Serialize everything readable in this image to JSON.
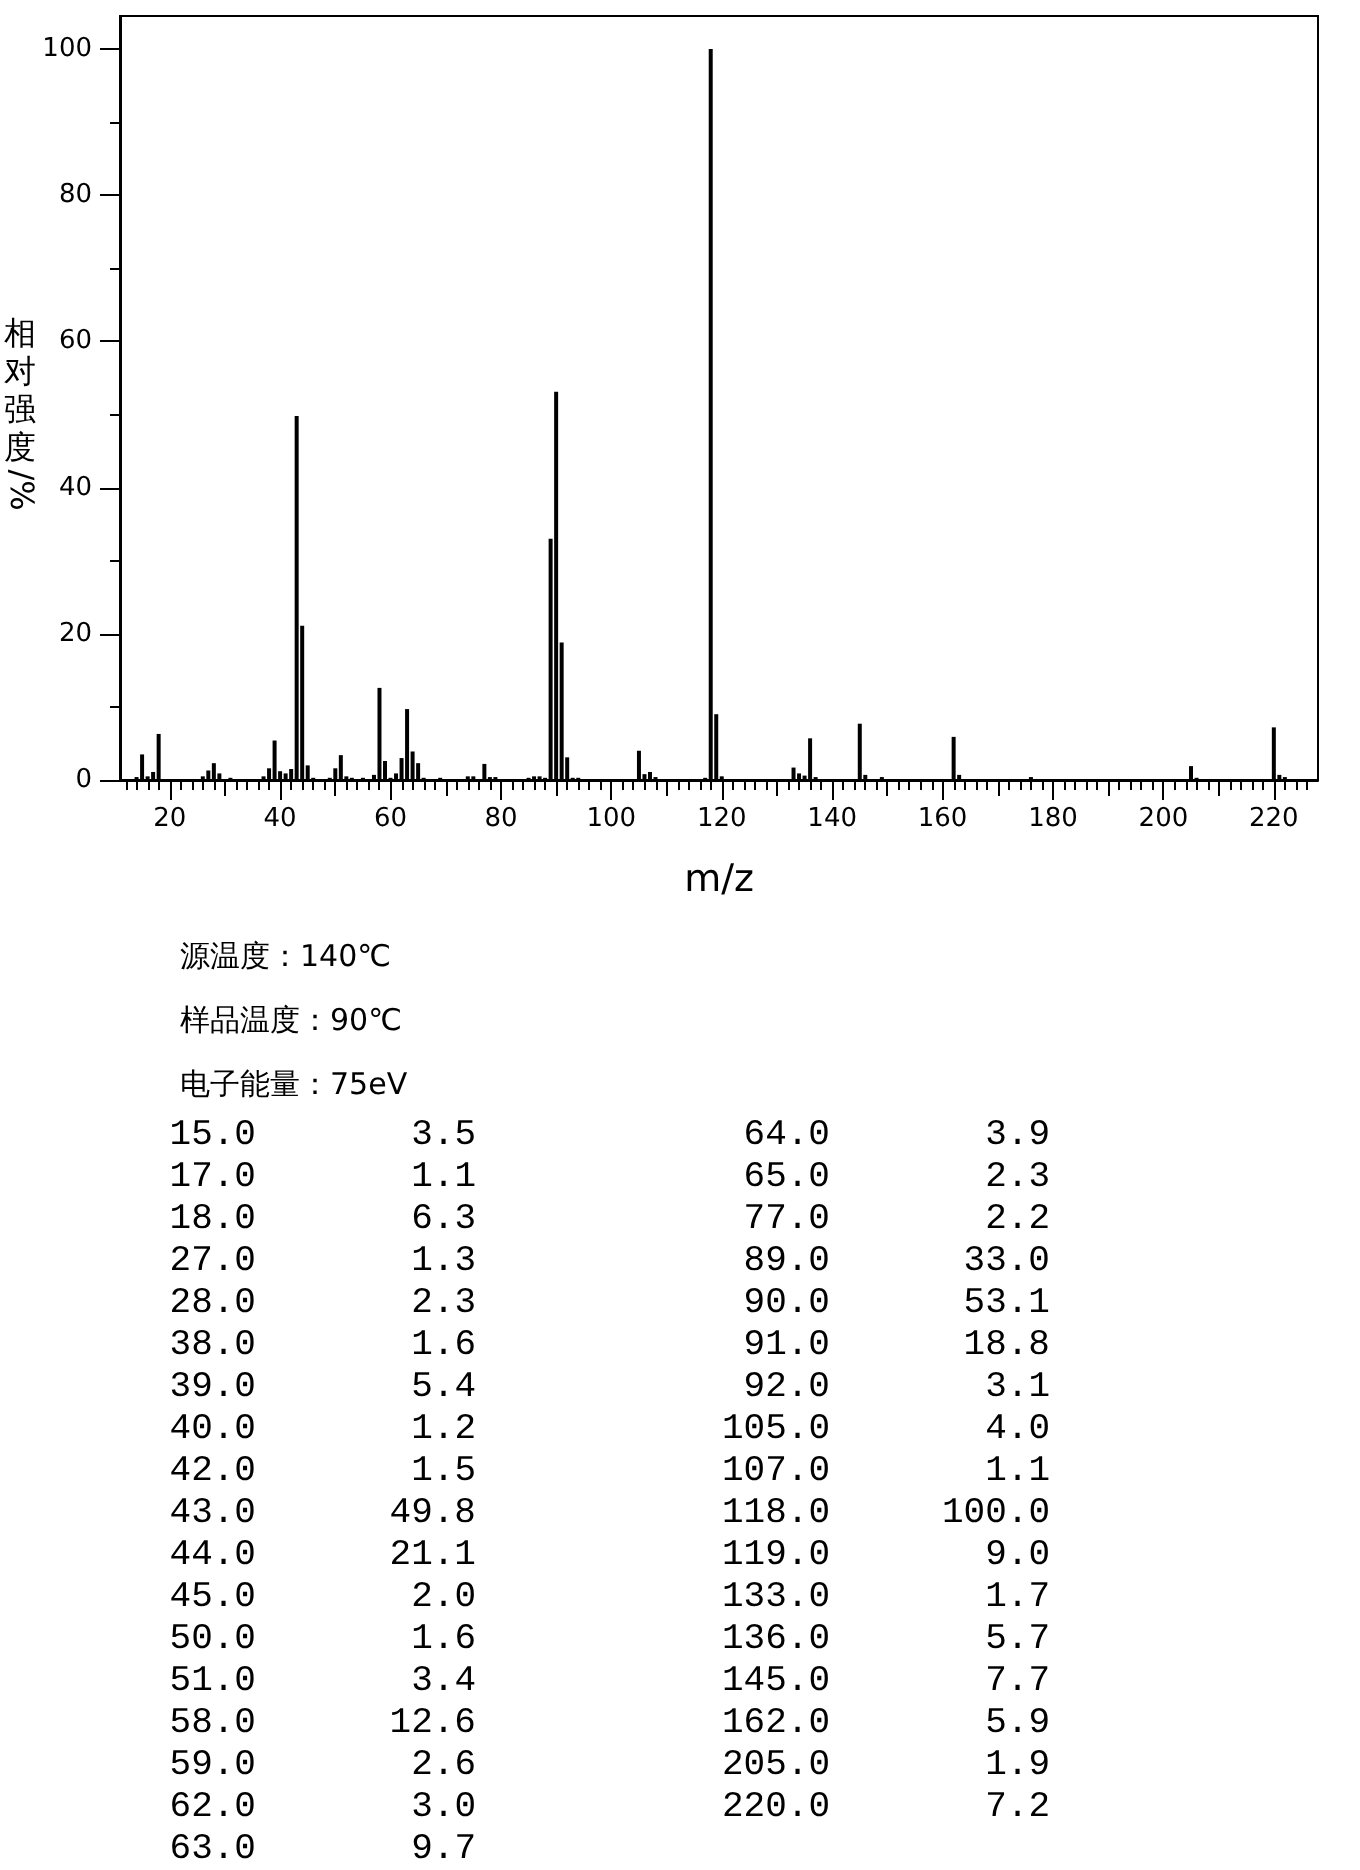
{
  "chart_data": [
    {
      "type": "bar",
      "xlabel": "m/z",
      "ylabel": "相对强度/%",
      "color": "#000000",
      "annotations": [
        "源温度：140℃",
        "样品温度：90℃",
        "电子能量：75eV"
      ],
      "x": [
        14,
        15,
        16,
        17,
        18,
        26,
        27,
        28,
        29,
        31,
        37,
        38,
        39,
        40,
        41,
        42,
        43,
        44,
        45,
        46,
        49,
        50,
        51,
        52,
        53,
        55,
        57,
        58,
        59,
        60,
        61,
        62,
        63,
        64,
        65,
        66,
        69,
        74,
        75,
        77,
        78,
        79,
        85,
        86,
        87,
        88,
        89,
        90,
        91,
        92,
        93,
        94,
        105,
        106,
        107,
        108,
        117,
        118,
        119,
        120,
        133,
        134,
        135,
        136,
        137,
        145,
        146,
        149,
        162,
        163,
        176,
        205,
        206,
        220,
        221,
        222
      ],
      "values": [
        0.4,
        3.5,
        0.5,
        1.1,
        6.3,
        0.5,
        1.3,
        2.3,
        0.9,
        0.3,
        0.5,
        1.6,
        5.4,
        1.2,
        0.9,
        1.5,
        49.8,
        21.1,
        2.0,
        0.3,
        0.3,
        1.6,
        3.4,
        0.5,
        0.3,
        0.3,
        0.7,
        12.6,
        2.6,
        0.3,
        0.9,
        3.0,
        9.7,
        3.9,
        2.3,
        0.3,
        0.3,
        0.5,
        0.5,
        2.2,
        0.4,
        0.4,
        0.3,
        0.5,
        0.5,
        0.3,
        33.0,
        53.1,
        18.8,
        3.1,
        0.3,
        0.3,
        4.0,
        0.8,
        1.1,
        0.4,
        0.3,
        100.0,
        9.0,
        0.5,
        1.7,
        0.9,
        0.6,
        5.7,
        0.4,
        7.7,
        0.7,
        0.4,
        5.9,
        0.7,
        0.4,
        1.9,
        0.3,
        7.2,
        0.7,
        0.4
      ],
      "xlim": [
        11,
        228
      ],
      "xticks": [
        {
          "value": 12,
          "label": null
        },
        {
          "value": 14,
          "label": null
        },
        {
          "value": 16,
          "label": null
        },
        {
          "value": 18,
          "label": null
        },
        20,
        {
          "value": 22,
          "label": null
        },
        {
          "value": 24,
          "label": null
        },
        {
          "value": 26,
          "label": null
        },
        {
          "value": 28,
          "label": null
        },
        {
          "value": 30,
          "label": null
        },
        {
          "value": 32,
          "label": null
        },
        {
          "value": 34,
          "label": null
        },
        {
          "value": 36,
          "label": null
        },
        {
          "value": 38,
          "label": null
        },
        40,
        {
          "value": 42,
          "label": null
        },
        {
          "value": 44,
          "label": null
        },
        {
          "value": 46,
          "label": null
        },
        {
          "value": 48,
          "label": null
        },
        {
          "value": 50,
          "label": null
        },
        {
          "value": 52,
          "label": null
        },
        {
          "value": 54,
          "label": null
        },
        {
          "value": 56,
          "label": null
        },
        {
          "value": 58,
          "label": null
        },
        60,
        {
          "value": 62,
          "label": null
        },
        {
          "value": 64,
          "label": null
        },
        {
          "value": 66,
          "label": null
        },
        {
          "value": 68,
          "label": null
        },
        {
          "value": 70,
          "label": null
        },
        {
          "value": 72,
          "label": null
        },
        {
          "value": 74,
          "label": null
        },
        {
          "value": 76,
          "label": null
        },
        {
          "value": 78,
          "label": null
        },
        80,
        {
          "value": 82,
          "label": null
        },
        {
          "value": 84,
          "label": null
        },
        {
          "value": 86,
          "label": null
        },
        {
          "value": 88,
          "label": null
        },
        {
          "value": 90,
          "label": null
        },
        {
          "value": 92,
          "label": null
        },
        {
          "value": 94,
          "label": null
        },
        {
          "value": 96,
          "label": null
        },
        {
          "value": 98,
          "label": null
        },
        100,
        {
          "value": 102,
          "label": null
        },
        {
          "value": 104,
          "label": null
        },
        {
          "value": 106,
          "label": null
        },
        {
          "value": 108,
          "label": null
        },
        {
          "value": 110,
          "label": null
        },
        {
          "value": 112,
          "label": null
        },
        {
          "value": 114,
          "label": null
        },
        {
          "value": 116,
          "label": null
        },
        {
          "value": 118,
          "label": null
        },
        120,
        {
          "value": 122,
          "label": null
        },
        {
          "value": 124,
          "label": null
        },
        {
          "value": 126,
          "label": null
        },
        {
          "value": 128,
          "label": null
        },
        {
          "value": 130,
          "label": null
        },
        {
          "value": 132,
          "label": null
        },
        {
          "value": 134,
          "label": null
        },
        {
          "value": 136,
          "label": null
        },
        {
          "value": 138,
          "label": null
        },
        140,
        {
          "value": 142,
          "label": null
        },
        {
          "value": 144,
          "label": null
        },
        {
          "value": 146,
          "label": null
        },
        {
          "value": 148,
          "label": null
        },
        {
          "value": 150,
          "label": null
        },
        {
          "value": 152,
          "label": null
        },
        {
          "value": 154,
          "label": null
        },
        {
          "value": 156,
          "label": null
        },
        {
          "value": 158,
          "label": null
        },
        160,
        {
          "value": 162,
          "label": null
        },
        {
          "value": 164,
          "label": null
        },
        {
          "value": 166,
          "label": null
        },
        {
          "value": 168,
          "label": null
        },
        {
          "value": 170,
          "label": null
        },
        {
          "value": 172,
          "label": null
        },
        {
          "value": 174,
          "label": null
        },
        {
          "value": 176,
          "label": null
        },
        {
          "value": 178,
          "label": null
        },
        180,
        {
          "value": 182,
          "label": null
        },
        {
          "value": 184,
          "label": null
        },
        {
          "value": 186,
          "label": null
        },
        {
          "value": 188,
          "label": null
        },
        {
          "value": 190,
          "label": null
        },
        {
          "value": 192,
          "label": null
        },
        {
          "value": 194,
          "label": null
        },
        {
          "value": 196,
          "label": null
        },
        {
          "value": 198,
          "label": null
        },
        200,
        {
          "value": 202,
          "label": null
        },
        {
          "value": 204,
          "label": null
        },
        {
          "value": 206,
          "label": null
        },
        {
          "value": 208,
          "label": null
        },
        {
          "value": 210,
          "label": null
        },
        {
          "value": 212,
          "label": null
        },
        {
          "value": 214,
          "label": null
        },
        {
          "value": 216,
          "label": null
        },
        {
          "value": 218,
          "label": null
        },
        220,
        {
          "value": 222,
          "label": null
        },
        {
          "value": 224,
          "label": null
        },
        {
          "value": 226,
          "label": null
        }
      ],
      "ylim": [
        0,
        104.5
      ],
      "yticks": [
        0,
        {
          "value": 10,
          "label": null
        },
        20,
        {
          "value": 30,
          "label": null
        },
        40,
        {
          "value": 50,
          "label": null
        },
        60,
        {
          "value": 70,
          "label": null
        },
        80,
        {
          "value": 90,
          "label": null
        },
        100
      ]
    },
    {
      "type": "other",
      "annotations": [
        "15.0",
        "3.5",
        "17.0",
        "1.1",
        "18.0",
        "6.3",
        "27.0",
        "1.3",
        "28.0",
        "2.3",
        "38.0",
        "1.6",
        "39.0",
        "5.4",
        "40.0",
        "1.2",
        "42.0",
        "1.5",
        "43.0",
        "49.8",
        "44.0",
        "21.1",
        "45.0",
        "2.0",
        "50.0",
        "1.6",
        "51.0",
        "3.4",
        "58.0",
        "12.6",
        "59.0",
        "2.6",
        "62.0",
        "3.0",
        "63.0",
        "9.7",
        "64.0",
        "3.9",
        "65.0",
        "2.3",
        "77.0",
        "2.2",
        "89.0",
        "33.0",
        "90.0",
        "53.1",
        "91.0",
        "18.8",
        "92.0",
        "3.1",
        "105.0",
        "4.0",
        "107.0",
        "1.1",
        "118.0",
        "100.0",
        "119.0",
        "9.0",
        "133.0",
        "1.7",
        "136.0",
        "5.7",
        "145.0",
        "7.7",
        "162.0",
        "5.9",
        "205.0",
        "1.9",
        "220.0",
        "7.2"
      ]
    }
  ]
}
